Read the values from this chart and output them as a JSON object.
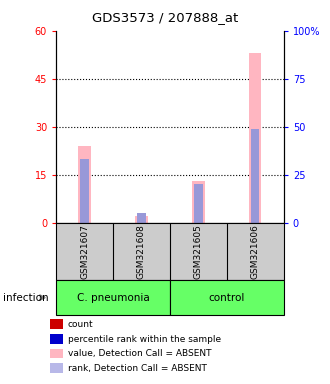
{
  "title": "GDS3573 / 207888_at",
  "samples": [
    "GSM321607",
    "GSM321608",
    "GSM321605",
    "GSM321606"
  ],
  "ylim_left": [
    0,
    60
  ],
  "ylim_right": [
    0,
    100
  ],
  "yticks_left": [
    0,
    15,
    30,
    45,
    60
  ],
  "yticks_right": [
    0,
    25,
    50,
    75,
    100
  ],
  "ytick_labels_right": [
    "0",
    "25",
    "50",
    "75",
    "100%"
  ],
  "pink_values": [
    24.0,
    2.0,
    13.0,
    53.0
  ],
  "blue_values_pct": [
    33.0,
    5.0,
    20.0,
    49.0
  ],
  "pink_color": "#ffb6c1",
  "blue_color": "#9898d8",
  "legend_colors": [
    "#cc0000",
    "#0000cc",
    "#ffb6c1",
    "#b8b8e8"
  ],
  "legend_labels": [
    "count",
    "percentile rank within the sample",
    "value, Detection Call = ABSENT",
    "rank, Detection Call = ABSENT"
  ],
  "group_boundaries": [
    0,
    2,
    4
  ],
  "group_labels": [
    "C. pneumonia",
    "control"
  ],
  "group_color": "#66ff66",
  "panel_color": "#cccccc",
  "bar_width": 0.12,
  "infection_label": "infection"
}
